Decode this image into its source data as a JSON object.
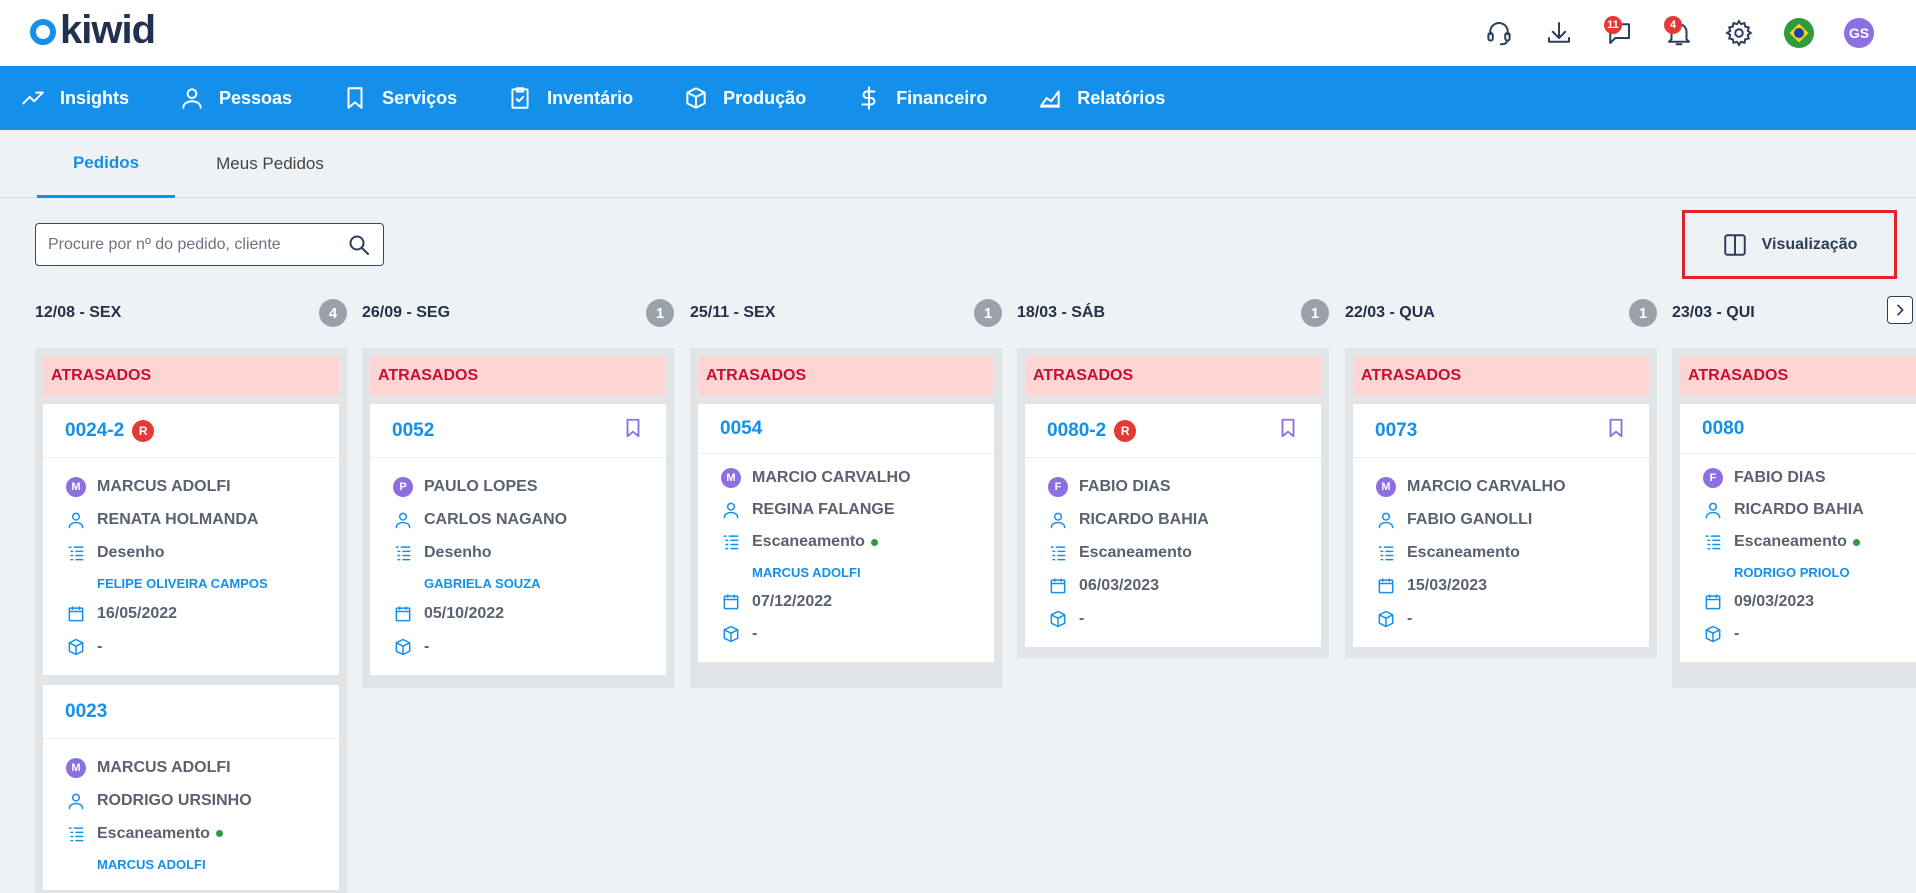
{
  "app": {
    "logo_text": "kiwid"
  },
  "header": {
    "chat_badge": "11",
    "notifications_badge": "4",
    "avatar_initials": "GS"
  },
  "nav": [
    {
      "label": "Insights",
      "icon": "trending-up-icon"
    },
    {
      "label": "Pessoas",
      "icon": "person-icon"
    },
    {
      "label": "Serviços",
      "icon": "bookmark-icon"
    },
    {
      "label": "Inventário",
      "icon": "clipboard-check-icon"
    },
    {
      "label": "Produção",
      "icon": "box-icon"
    },
    {
      "label": "Financeiro",
      "icon": "dollar-icon"
    },
    {
      "label": "Relatórios",
      "icon": "area-chart-icon"
    }
  ],
  "tabs": [
    {
      "label": "Pedidos",
      "active": true
    },
    {
      "label": "Meus Pedidos",
      "active": false
    }
  ],
  "search": {
    "placeholder": "Procure por nº do pedido, cliente"
  },
  "view_button": {
    "label": "Visualização"
  },
  "group_label": "ATRASADOS",
  "columns": [
    {
      "date": "12/08 - SEX",
      "count": "4",
      "cards": [
        {
          "id": "0024-2",
          "r": "R",
          "bookmark": false,
          "initial": "M",
          "person1": "MARCUS ADOLFI",
          "person2": "RENATA HOLMANDA",
          "stage": "Desenho",
          "stage_dot": false,
          "assignee": "FELIPE OLIVEIRA CAMPOS",
          "date": "16/05/2022",
          "box": "-"
        },
        {
          "id": "0023",
          "r": "",
          "bookmark": false,
          "initial": "M",
          "person1": "MARCUS ADOLFI",
          "person2": "RODRIGO URSINHO",
          "stage": "Escaneamento",
          "stage_dot": true,
          "assignee": "MARCUS ADOLFI",
          "date": "",
          "box": ""
        }
      ]
    },
    {
      "date": "26/09 - SEG",
      "count": "1",
      "cards": [
        {
          "id": "0052",
          "r": "",
          "bookmark": true,
          "initial": "P",
          "person1": "PAULO LOPES",
          "person2": "CARLOS NAGANO",
          "stage": "Desenho",
          "stage_dot": false,
          "assignee": "GABRIELA SOUZA",
          "date": "05/10/2022",
          "box": "-"
        }
      ]
    },
    {
      "date": "25/11 - SEX",
      "count": "1",
      "cards": [
        {
          "id": "0054",
          "r": "",
          "bookmark": false,
          "initial": "M",
          "person1": "MARCIO CARVALHO",
          "person2": "REGINA FALANGE",
          "stage": "Escaneamento",
          "stage_dot": true,
          "assignee": "MARCUS ADOLFI",
          "date": "07/12/2022",
          "box": "-"
        }
      ]
    },
    {
      "date": "18/03 - SÁB",
      "count": "1",
      "cards": [
        {
          "id": "0080-2",
          "r": "R",
          "bookmark": true,
          "initial": "F",
          "person1": "FABIO DIAS",
          "person2": "RICARDO BAHIA",
          "stage": "Escaneamento",
          "stage_dot": false,
          "assignee": "",
          "date": "06/03/2023",
          "box": "-"
        }
      ]
    },
    {
      "date": "22/03 - QUA",
      "count": "1",
      "cards": [
        {
          "id": "0073",
          "r": "",
          "bookmark": true,
          "initial": "M",
          "person1": "MARCIO CARVALHO",
          "person2": "FABIO GANOLLI",
          "stage": "Escaneamento",
          "stage_dot": false,
          "assignee": "",
          "date": "15/03/2023",
          "box": "-"
        }
      ]
    },
    {
      "date": "23/03 - QUI",
      "count": "",
      "cards": [
        {
          "id": "0080",
          "r": "",
          "bookmark": false,
          "initial": "F",
          "person1": "FABIO DIAS",
          "person2": "RICARDO BAHIA",
          "stage": "Escaneamento",
          "stage_dot": true,
          "assignee": "RODRIGO PRIOLO",
          "date": "09/03/2023",
          "box": "-"
        }
      ]
    }
  ]
}
